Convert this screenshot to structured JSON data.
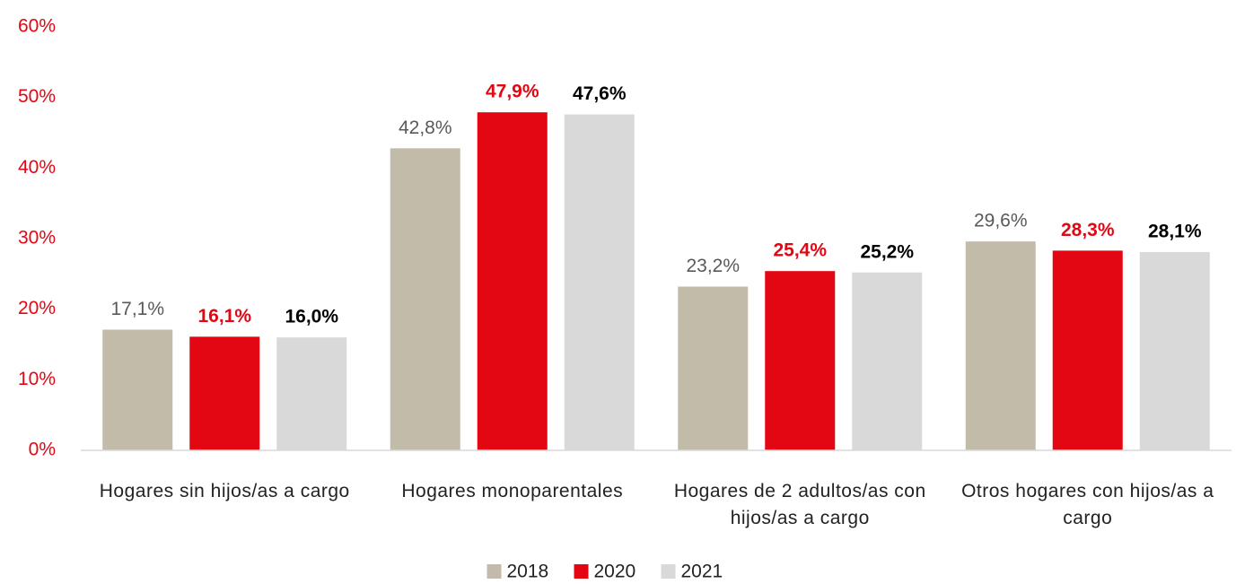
{
  "chart_data": {
    "type": "bar",
    "categories": [
      "Hogares sin hijos/as a cargo",
      "Hogares monoparentales",
      "Hogares de 2 adultos/as con hijos/as a cargo",
      "Otros hogares con hijos/as a cargo"
    ],
    "series": [
      {
        "name": "2018",
        "color": "#c3bbaa",
        "values": [
          17.1,
          42.8,
          23.2,
          29.6
        ],
        "value_labels": [
          "17,1%",
          "42,8%",
          "23,2%",
          "29,6%"
        ]
      },
      {
        "name": "2020",
        "color": "#e30613",
        "values": [
          16.1,
          47.9,
          25.4,
          28.3
        ],
        "value_labels": [
          "16,1%",
          "47,9%",
          "25,4%",
          "28,3%"
        ]
      },
      {
        "name": "2021",
        "color": "#d9d9d9",
        "values": [
          16.0,
          47.6,
          25.2,
          28.1
        ],
        "value_labels": [
          "16,0%",
          "47,6%",
          "25,2%",
          "28,1%"
        ]
      }
    ],
    "ylim": [
      0,
      60
    ],
    "yticks": [
      {
        "value": 0,
        "label": "0%"
      },
      {
        "value": 10,
        "label": "10%"
      },
      {
        "value": 20,
        "label": "20%"
      },
      {
        "value": 30,
        "label": "30%"
      },
      {
        "value": 40,
        "label": "40%"
      },
      {
        "value": 50,
        "label": "50%"
      },
      {
        "value": 60,
        "label": "60%"
      }
    ],
    "legend": "bottom"
  }
}
